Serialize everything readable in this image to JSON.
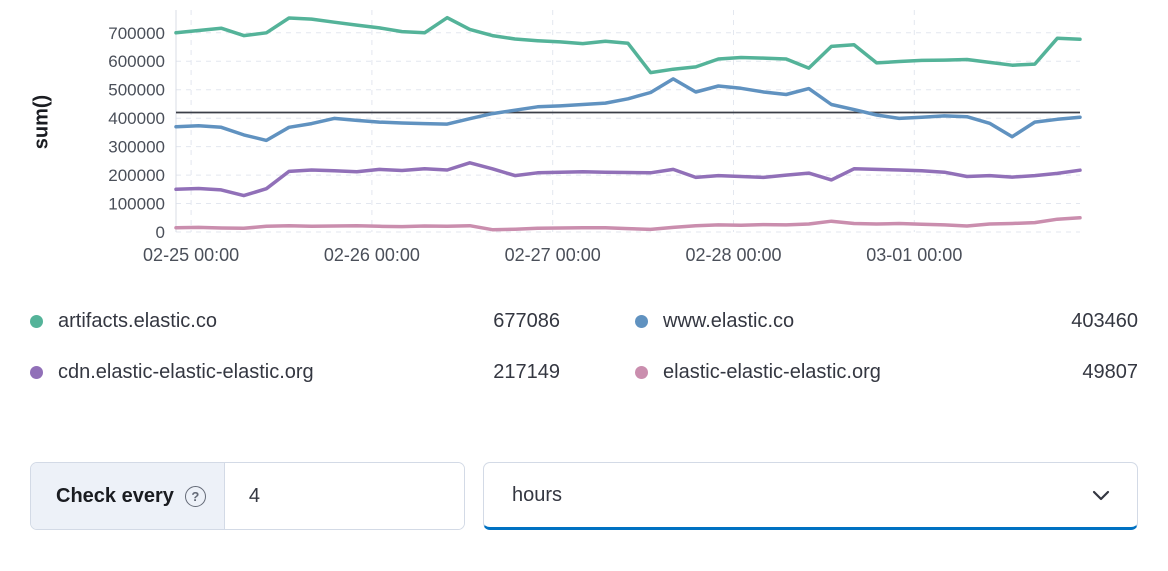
{
  "colors": {
    "accent_blue": "#0071c2",
    "threshold_line": "#3c3f48",
    "grid": "#e3e7ef",
    "text": "#343741"
  },
  "chart_data": {
    "type": "line",
    "title": "",
    "ylabel": "sum()",
    "ylim": [
      0,
      780000
    ],
    "grid": true,
    "legend_position": "bottom",
    "threshold": 420000,
    "y_ticks": [
      0,
      100000,
      200000,
      300000,
      400000,
      500000,
      600000,
      700000
    ],
    "x_unit": "hours relative to 02-25 00:00",
    "x_ticks": [
      {
        "hour": 0,
        "label": "02-25 00:00"
      },
      {
        "hour": 24,
        "label": "02-26 00:00"
      },
      {
        "hour": 48,
        "label": "02-27 00:00"
      },
      {
        "hour": 72,
        "label": "02-28 00:00"
      },
      {
        "hour": 96,
        "label": "03-01 00:00"
      }
    ],
    "x": [
      -2,
      1,
      4,
      7,
      10,
      13,
      16,
      19,
      22,
      25,
      28,
      31,
      34,
      37,
      40,
      43,
      46,
      49,
      52,
      55,
      58,
      61,
      64,
      67,
      70,
      73,
      76,
      79,
      82,
      85,
      88,
      91,
      94,
      97,
      100,
      103,
      106,
      109,
      112,
      115,
      118
    ],
    "series": [
      {
        "name": "artifacts.elastic.co",
        "color": "#54b399",
        "values": [
          700000,
          708000,
          716000,
          690000,
          700000,
          752000,
          748000,
          737000,
          727000,
          717000,
          704000,
          700000,
          753000,
          712000,
          690000,
          678000,
          672000,
          668000,
          662000,
          670000,
          663000,
          560000,
          572000,
          580000,
          608000,
          613000,
          611000,
          608000,
          576000,
          652000,
          658000,
          594000,
          599000,
          603000,
          604000,
          606000,
          596000,
          586000,
          590000,
          681000,
          677086
        ]
      },
      {
        "name": "www.elastic.co",
        "color": "#6092c0",
        "values": [
          370000,
          373000,
          368000,
          341000,
          322000,
          368000,
          381000,
          399000,
          392000,
          386000,
          383000,
          381000,
          379000,
          398000,
          416000,
          428000,
          440000,
          443000,
          448000,
          453000,
          468000,
          490000,
          538000,
          492000,
          513000,
          505000,
          492000,
          483000,
          504000,
          448000,
          430000,
          411000,
          399000,
          403000,
          408000,
          405000,
          382000,
          335000,
          386000,
          396000,
          403460
        ]
      },
      {
        "name": "cdn.elastic-elastic-elastic.org",
        "color": "#9170b8",
        "values": [
          150000,
          153000,
          148000,
          128000,
          152000,
          213000,
          218000,
          215000,
          212000,
          220000,
          216000,
          222000,
          218000,
          243000,
          222000,
          198000,
          208000,
          210000,
          212000,
          210000,
          209000,
          208000,
          220000,
          192000,
          198000,
          195000,
          192000,
          200000,
          207000,
          183000,
          222000,
          220000,
          218000,
          215000,
          210000,
          195000,
          198000,
          193000,
          198000,
          206000,
          217149
        ]
      },
      {
        "name": "elastic-elastic-elastic.org",
        "color": "#ca8eae",
        "values": [
          15000,
          16000,
          14000,
          13000,
          20000,
          22000,
          20000,
          21000,
          22000,
          20000,
          19000,
          21000,
          20000,
          22000,
          8000,
          10000,
          13000,
          14000,
          15000,
          15000,
          12000,
          9000,
          16000,
          22000,
          25000,
          24000,
          26000,
          25000,
          28000,
          38000,
          30000,
          28000,
          30000,
          27000,
          25000,
          21000,
          28000,
          30000,
          33000,
          45000,
          49807
        ]
      }
    ]
  },
  "legend": {
    "items": [
      {
        "name": "artifacts.elastic.co",
        "value": "677086",
        "color": "#54b399"
      },
      {
        "name": "www.elastic.co",
        "value": "403460",
        "color": "#6092c0"
      },
      {
        "name": "cdn.elastic-elastic-elastic.org",
        "value": "217149",
        "color": "#9170b8"
      },
      {
        "name": "elastic-elastic-elastic.org",
        "value": "49807",
        "color": "#ca8eae"
      }
    ]
  },
  "controls": {
    "check_every_label": "Check every",
    "check_every_value": "4",
    "help_icon_glyph": "?",
    "unit_value": "hours"
  }
}
